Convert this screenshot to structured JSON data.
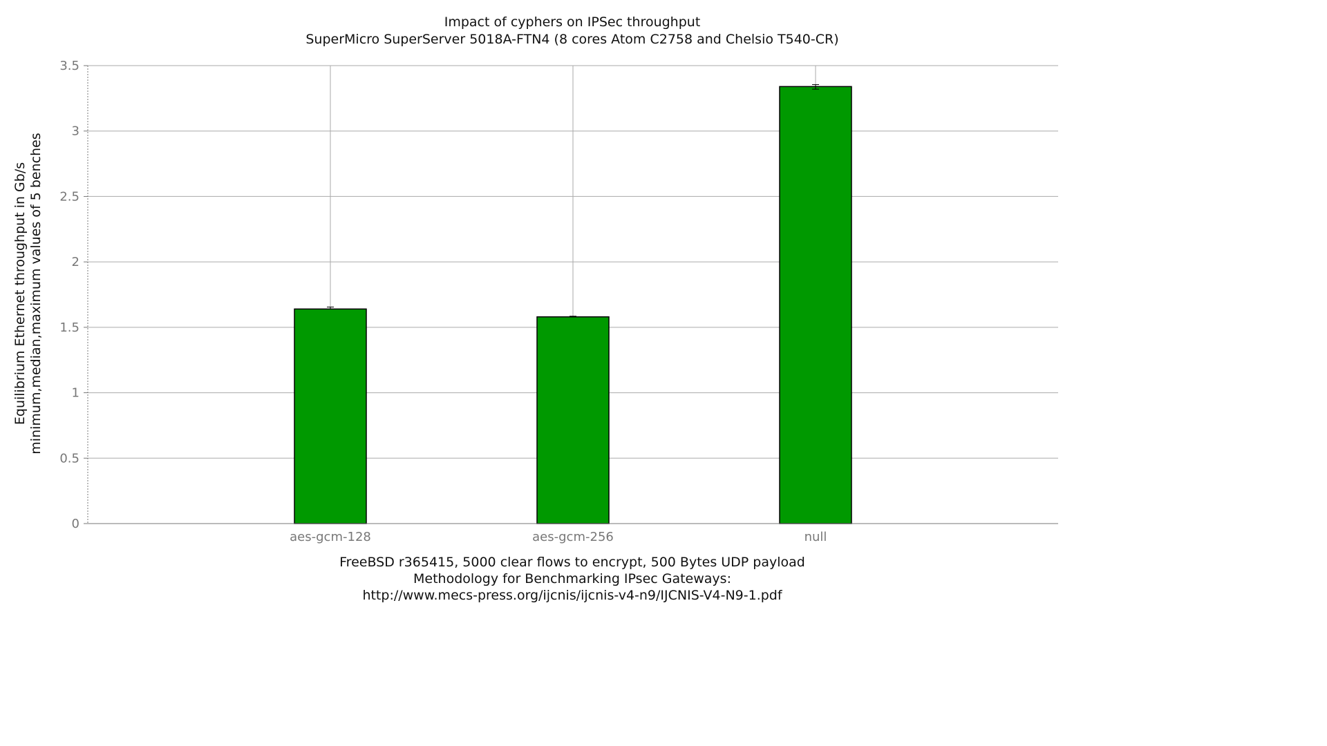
{
  "chart_data": {
    "type": "bar",
    "title": "Impact of cyphers on IPSec throughput",
    "subtitle": "SuperMicro SuperServer 5018A-FTN4 (8 cores Atom C2758 and Chelsio T540-CR)",
    "ylabel": "Equilibrium Ethernet throughput in Gb/s",
    "ylabel2": "minimum,median,maximum values of 5 benches",
    "xlabel": "FreeBSD r365415, 5000 clear flows to encrypt, 500 Bytes UDP payload",
    "xlabel2": "Methodology for Benchmarking IPsec Gateways:",
    "xlabel3": "http://www.mecs-press.org/ijcnis/ijcnis-v4-n9/IJCNIS-V4-N9-1.pdf",
    "categories": [
      "aes-gcm-128",
      "aes-gcm-256",
      "null"
    ],
    "series": [
      {
        "values": [
          1.64,
          1.58,
          3.34
        ],
        "min": [
          1.64,
          1.58,
          3.32
        ],
        "max": [
          1.655,
          1.585,
          3.355
        ]
      }
    ],
    "ylim": [
      0,
      3.5
    ],
    "yticks": [
      "0",
      "0.5",
      "1",
      "1.5",
      "2",
      "2.5",
      "3",
      "3.5"
    ],
    "grid": true,
    "bar_color": "#009900",
    "bar_edge_color": "#000000",
    "grid_color": "#aaaaaa",
    "tick_color": "#777777"
  }
}
